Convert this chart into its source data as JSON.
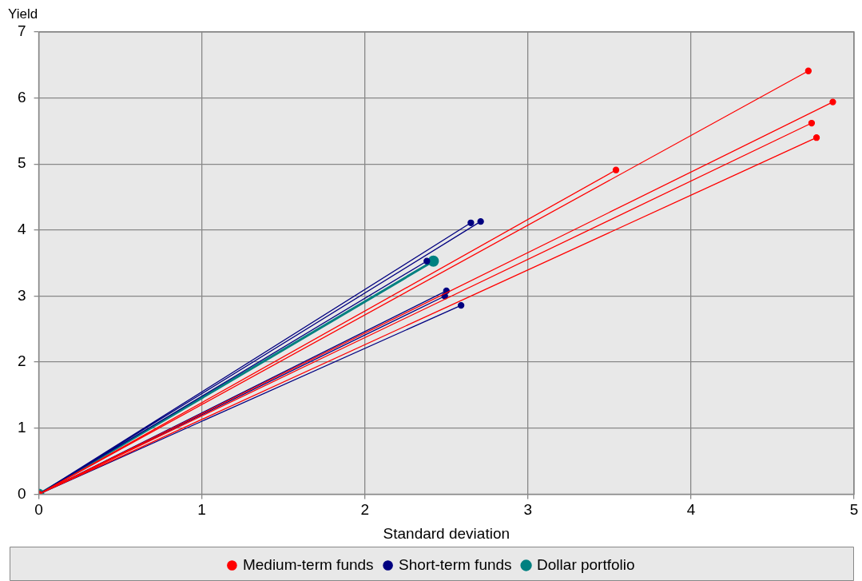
{
  "chart_data": {
    "type": "line",
    "xlabel": "Standard deviation",
    "ylabel": "Yield",
    "xlim": [
      0,
      5
    ],
    "xticks": [
      0,
      1,
      2,
      3,
      4,
      5
    ],
    "ylim": [
      0,
      7
    ],
    "yticks": [
      0,
      1,
      2,
      3,
      4,
      5,
      6,
      7
    ],
    "grid": true,
    "legend": "bottom",
    "marker": "circle",
    "line_style": "solid",
    "series": [
      {
        "name": "Medium-term funds",
        "color": "#ff0000",
        "x": [
          0,
          4.72,
          0,
          4.87,
          0,
          4.74,
          0,
          4.77,
          0,
          3.54
        ],
        "values": [
          0,
          6.41,
          0,
          5.94,
          0,
          5.62,
          0,
          5.4,
          0,
          4.91
        ]
      },
      {
        "name": "Short-term funds",
        "color": "#000080",
        "x": [
          0,
          2.65,
          0,
          2.71,
          0,
          2.38,
          0,
          2.5,
          0,
          2.49,
          0,
          2.59
        ],
        "values": [
          0,
          4.11,
          0,
          4.13,
          0,
          3.53,
          0,
          3.08,
          0,
          3.0,
          0,
          2.86
        ]
      },
      {
        "name": "Dollar portfolio",
        "color": "#008080",
        "x": [
          0,
          2.42
        ],
        "values": [
          0,
          3.53
        ]
      }
    ]
  }
}
